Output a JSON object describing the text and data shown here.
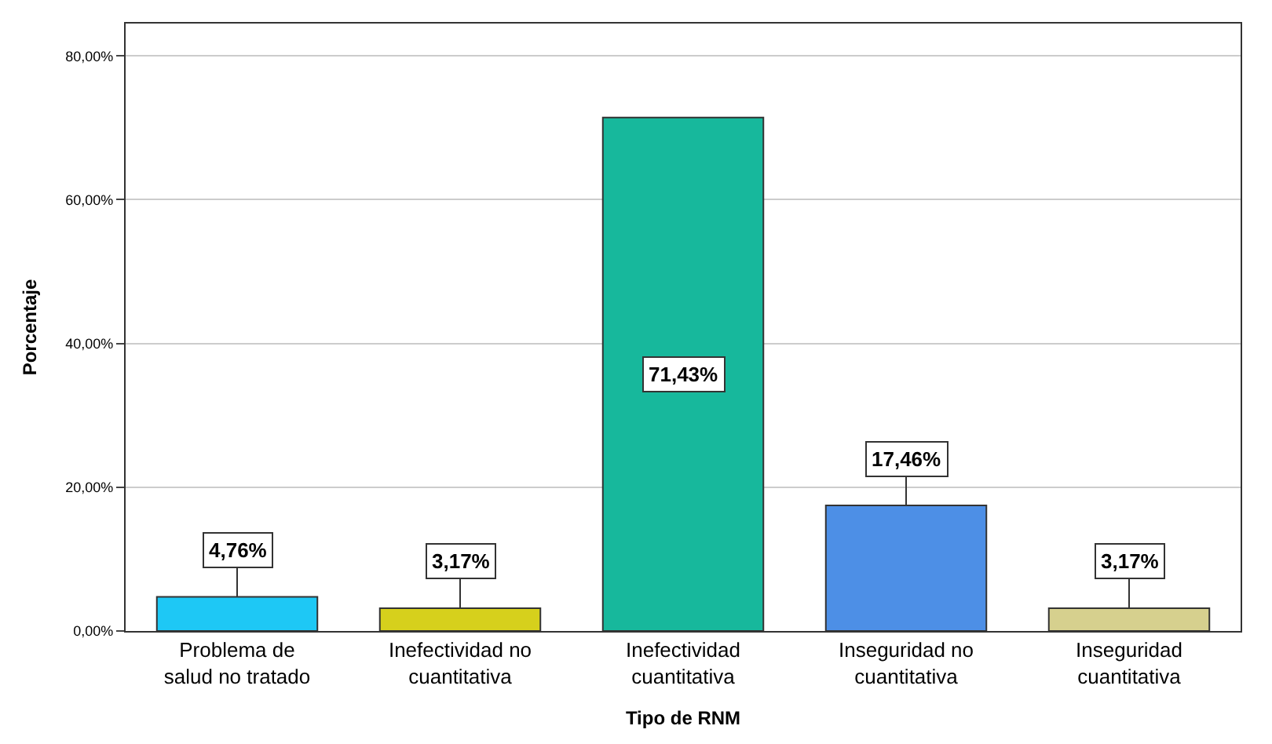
{
  "chart_data": {
    "type": "bar",
    "xlabel": "Tipo de RNM",
    "ylabel": "Porcentaje",
    "categories": [
      "Problema de salud no tratado",
      "Inefectividad no cuantitativa",
      "Inefectividad cuantitativa",
      "Inseguridad no cuantitativa",
      "Inseguridad cuantitativa"
    ],
    "values": [
      4.76,
      3.17,
      71.43,
      17.46,
      3.17
    ],
    "colors": [
      "#1ec8f5",
      "#d6d01c",
      "#17b89c",
      "#4d8fe6",
      "#d6d08e"
    ],
    "value_labels": [
      "4,76%",
      "3,17%",
      "71,43%",
      "17,46%",
      "3,17%"
    ],
    "ylim": [
      0,
      84.5
    ],
    "yticks": [
      {
        "value": 0,
        "label": "0,00%"
      },
      {
        "value": 20,
        "label": "20,00%"
      },
      {
        "value": 40,
        "label": "40,00%"
      },
      {
        "value": 60,
        "label": "60,00%"
      },
      {
        "value": 80,
        "label": "80,00%"
      }
    ],
    "grid": "y"
  }
}
